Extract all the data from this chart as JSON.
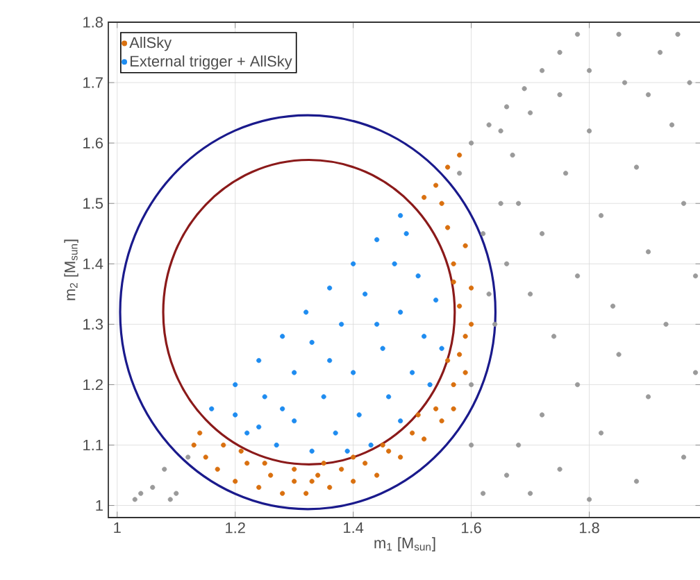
{
  "chart_data": {
    "type": "scatter",
    "xlabel": "m$_{1}$ [M$_{sun}$]",
    "ylabel": "m$_{2}$ [M$_{sun}$]",
    "xlim": [
      0.985,
      1.99
    ],
    "ylim": [
      0.98,
      1.8
    ],
    "xticks": [
      1,
      1.2,
      1.4,
      1.6,
      1.8
    ],
    "yticks": [
      1,
      1.1,
      1.2,
      1.3,
      1.4,
      1.5,
      1.6,
      1.7,
      1.8
    ],
    "grid": true,
    "legend": "top left",
    "series": [
      {
        "color": "#9a9a9a",
        "x": [
          1.6,
          1.63,
          1.66,
          1.69,
          1.72,
          1.75,
          1.78,
          1.03,
          1.06,
          1.08,
          1.1,
          1.12,
          1.04,
          1.09,
          1.62,
          1.66,
          1.68,
          1.7,
          1.72,
          1.75,
          1.78,
          1.8,
          1.82,
          1.85,
          1.88,
          1.9,
          1.93,
          1.96,
          1.98,
          1.64,
          1.66,
          1.68,
          1.7,
          1.72,
          1.74,
          1.76,
          1.78,
          1.8,
          1.82,
          1.84,
          1.86,
          1.88,
          1.9,
          1.92,
          1.94,
          1.96,
          1.98,
          1.85,
          1.95,
          1.9,
          1.97,
          1.6,
          1.63,
          1.65,
          1.67,
          1.62,
          1.6,
          1.58,
          1.7,
          1.75,
          1.8,
          1.65
        ],
        "values": [
          1.6,
          1.63,
          1.66,
          1.69,
          1.72,
          1.75,
          1.78,
          1.01,
          1.03,
          1.06,
          1.02,
          1.08,
          1.02,
          1.01,
          1.02,
          1.05,
          1.1,
          1.02,
          1.15,
          1.06,
          1.2,
          1.01,
          1.12,
          1.25,
          1.04,
          1.18,
          1.3,
          1.08,
          1.22,
          1.3,
          1.4,
          1.5,
          1.35,
          1.45,
          1.28,
          1.55,
          1.38,
          1.62,
          1.48,
          1.33,
          1.7,
          1.56,
          1.42,
          1.75,
          1.63,
          1.5,
          1.38,
          1.78,
          1.78,
          1.68,
          1.7,
          1.2,
          1.35,
          1.5,
          1.58,
          1.45,
          1.1,
          1.55,
          1.65,
          1.68,
          1.72,
          1.62
        ]
      },
      {
        "name": "AllSky",
        "color": "#d9700f",
        "x": [
          1.13,
          1.15,
          1.14,
          1.17,
          1.18,
          1.2,
          1.22,
          1.24,
          1.26,
          1.28,
          1.3,
          1.32,
          1.34,
          1.36,
          1.38,
          1.4,
          1.42,
          1.44,
          1.46,
          1.48,
          1.5,
          1.52,
          1.54,
          1.55,
          1.57,
          1.56,
          1.59,
          1.58,
          1.6,
          1.57,
          1.59,
          1.56,
          1.55,
          1.52,
          1.54,
          1.56,
          1.58,
          1.57,
          1.59,
          1.57,
          1.25,
          1.3,
          1.35,
          1.45,
          1.21,
          1.4,
          1.51,
          1.58,
          1.6,
          1.33
        ],
        "values": [
          1.1,
          1.08,
          1.12,
          1.06,
          1.1,
          1.04,
          1.07,
          1.03,
          1.05,
          1.02,
          1.04,
          1.02,
          1.05,
          1.03,
          1.06,
          1.04,
          1.07,
          1.05,
          1.09,
          1.08,
          1.12,
          1.11,
          1.16,
          1.14,
          1.2,
          1.24,
          1.28,
          1.33,
          1.36,
          1.4,
          1.43,
          1.46,
          1.5,
          1.51,
          1.53,
          1.56,
          1.58,
          1.37,
          1.22,
          1.16,
          1.07,
          1.06,
          1.07,
          1.1,
          1.09,
          1.08,
          1.15,
          1.25,
          1.3,
          1.04
        ]
      },
      {
        "name": "External trigger + AllSky",
        "color": "#1e8cf0",
        "x": [
          1.16,
          1.2,
          1.24,
          1.28,
          1.32,
          1.36,
          1.4,
          1.44,
          1.48,
          1.2,
          1.22,
          1.25,
          1.27,
          1.3,
          1.3,
          1.33,
          1.33,
          1.35,
          1.37,
          1.38,
          1.4,
          1.41,
          1.42,
          1.43,
          1.45,
          1.46,
          1.47,
          1.48,
          1.5,
          1.48,
          1.51,
          1.52,
          1.53,
          1.54,
          1.55,
          1.49,
          1.36,
          1.28,
          1.24,
          1.44,
          1.39
        ],
        "values": [
          1.16,
          1.2,
          1.24,
          1.28,
          1.32,
          1.36,
          1.4,
          1.44,
          1.48,
          1.15,
          1.12,
          1.18,
          1.1,
          1.22,
          1.14,
          1.09,
          1.27,
          1.18,
          1.12,
          1.3,
          1.22,
          1.15,
          1.35,
          1.1,
          1.26,
          1.18,
          1.4,
          1.32,
          1.22,
          1.14,
          1.38,
          1.28,
          1.2,
          1.34,
          1.26,
          1.45,
          1.24,
          1.16,
          1.13,
          1.3,
          1.09
        ]
      }
    ]
  }
}
